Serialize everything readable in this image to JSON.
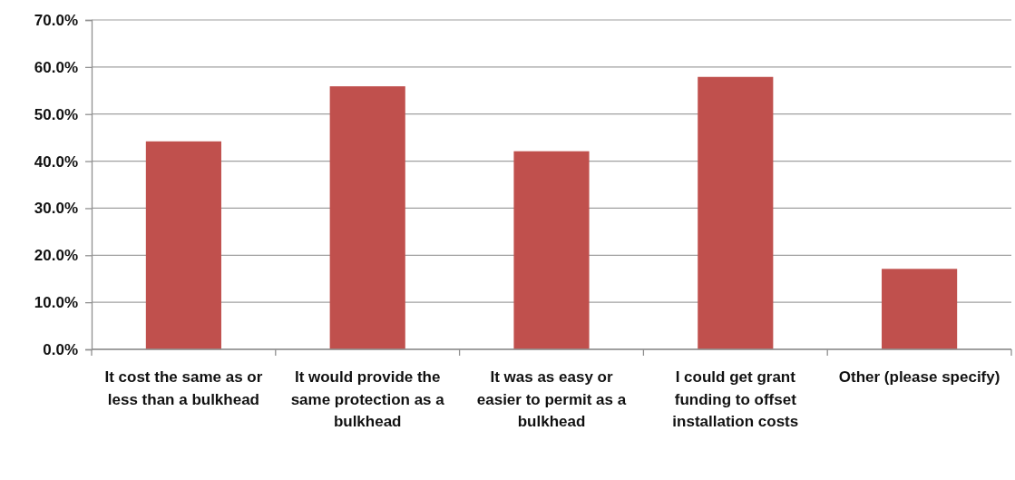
{
  "chart_data": {
    "type": "bar",
    "categories": [
      "It cost the same as or less than a bulkhead",
      "It would provide the same protection as a bulkhead",
      "It was as easy or easier to permit as a bulkhead",
      "I could get grant funding to offset installation costs",
      "Other (please specify)"
    ],
    "values": [
      44.2,
      55.9,
      42.1,
      57.9,
      17.1
    ],
    "color": "#c0504d",
    "ylim": [
      0,
      70
    ],
    "yticks": [
      {
        "value": 0,
        "label": "0.0%"
      },
      {
        "value": 10,
        "label": "10.0%"
      },
      {
        "value": 20,
        "label": "20.0%"
      },
      {
        "value": 30,
        "label": "30.0%"
      },
      {
        "value": 40,
        "label": "40.0%"
      },
      {
        "value": 50,
        "label": "50.0%"
      },
      {
        "value": 60,
        "label": "60.0%"
      },
      {
        "value": 70,
        "label": "70.0%"
      }
    ],
    "grid": "y"
  }
}
